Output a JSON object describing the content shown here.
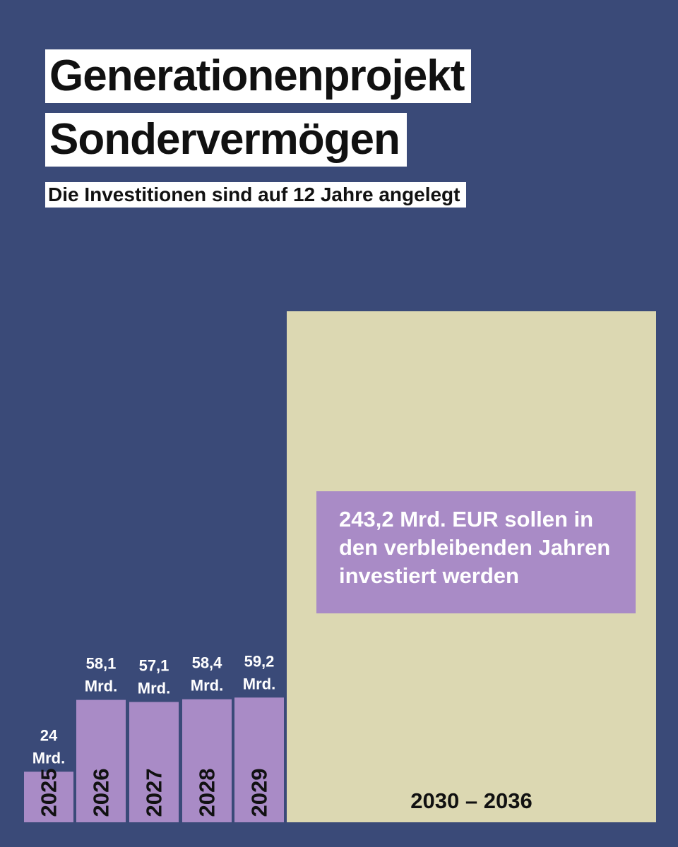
{
  "title_lines": [
    "Generationenprojekt",
    "Sondervermögen"
  ],
  "subtitle": "Die Investitionen sind auf 12 Jahre angelegt",
  "annotation": "243,2 Mrd. EUR sollen in den verbleibenden Jahren investiert werden",
  "colors": {
    "background": "#3a4a78",
    "bar": "#a98bc6",
    "big_bar": "#dcd8b2",
    "label_light": "#ffffff",
    "label_dark": "#111111"
  },
  "chart_data": {
    "type": "bar",
    "categories": [
      "2025",
      "2026",
      "2027",
      "2028",
      "2029",
      "2030 – 2036"
    ],
    "values": [
      24,
      58.1,
      57.1,
      58.4,
      59.2,
      243.2
    ],
    "value_labels": [
      [
        "24",
        "Mrd."
      ],
      [
        "58,1",
        "Mrd."
      ],
      [
        "57,1",
        "Mrd."
      ],
      [
        "58,4",
        "Mrd."
      ],
      [
        "59,2",
        "Mrd."
      ]
    ],
    "unit": "Mrd. EUR"
  }
}
